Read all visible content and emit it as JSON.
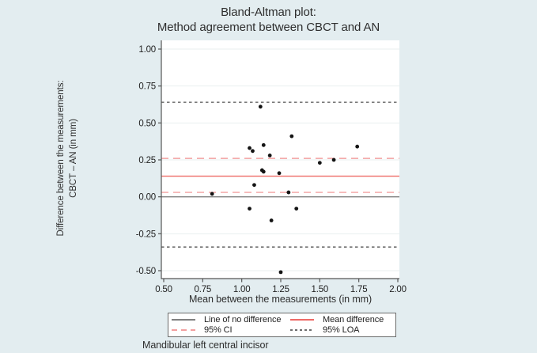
{
  "title": {
    "line1": "Bland-Altman plot:",
    "line2": "Method agreement between CBCT and AN"
  },
  "axes": {
    "y_label_line1": "Difference between the measurements:",
    "y_label_line2": "CBCT – AN (in mm)",
    "x_label": "Mean between the measurements (in mm)"
  },
  "caption": "Mandibular left central incisor",
  "legend": {
    "items": [
      {
        "label": "Line of no difference",
        "style": "solid",
        "color": "#808080"
      },
      {
        "label": "Mean difference",
        "style": "solid",
        "color": "#ee6a66"
      },
      {
        "label": "95% CI",
        "style": "dashed",
        "color": "#f2a0a0"
      },
      {
        "label": "95% LOA",
        "style": "dotted",
        "color": "#6e6e6e"
      }
    ]
  },
  "colors": {
    "background": "#e3edf0",
    "plot_bg": "#ffffff",
    "axis": "#555555",
    "gridline": "#e9efef",
    "point": "#141414",
    "no_difference": "#808080",
    "mean": "#ee6a66",
    "ci": "#f2a0a0",
    "loa": "#666666"
  },
  "chart_data": {
    "type": "scatter",
    "title": "Bland-Altman plot: Method agreement between CBCT and AN",
    "xlabel": "Mean between the measurements (in mm)",
    "ylabel": "Difference between the measurements: CBCT – AN (in mm)",
    "xlim": [
      0.48,
      2.01
    ],
    "ylim": [
      -0.55,
      1.06
    ],
    "grid": "horizontal-faint",
    "legend_position": "bottom",
    "x_ticks": [
      "0.50",
      "0.75",
      "1.00",
      "1.25",
      "1.50",
      "1.75",
      "2.00"
    ],
    "y_ticks": [
      "1.00",
      "0.75",
      "0.50",
      "0.25",
      "0.00",
      "-0.25",
      "-0.50"
    ],
    "points": [
      [
        1.12,
        0.61
      ],
      [
        1.05,
        0.33
      ],
      [
        1.07,
        0.31
      ],
      [
        1.14,
        0.35
      ],
      [
        1.32,
        0.41
      ],
      [
        1.74,
        0.34
      ],
      [
        1.18,
        0.28
      ],
      [
        1.5,
        0.23
      ],
      [
        1.59,
        0.25
      ],
      [
        1.13,
        0.18
      ],
      [
        1.14,
        0.17
      ],
      [
        1.24,
        0.16
      ],
      [
        1.08,
        0.08
      ],
      [
        0.81,
        0.02
      ],
      [
        1.3,
        0.03
      ],
      [
        1.05,
        -0.08
      ],
      [
        1.35,
        -0.08
      ],
      [
        1.19,
        -0.16
      ],
      [
        1.25,
        -0.51
      ]
    ],
    "reference_lines": {
      "no_difference": 0.0,
      "mean_difference": 0.14,
      "ci_lower": 0.03,
      "ci_upper": 0.26,
      "loa_lower": -0.34,
      "loa_upper": 0.64
    }
  }
}
